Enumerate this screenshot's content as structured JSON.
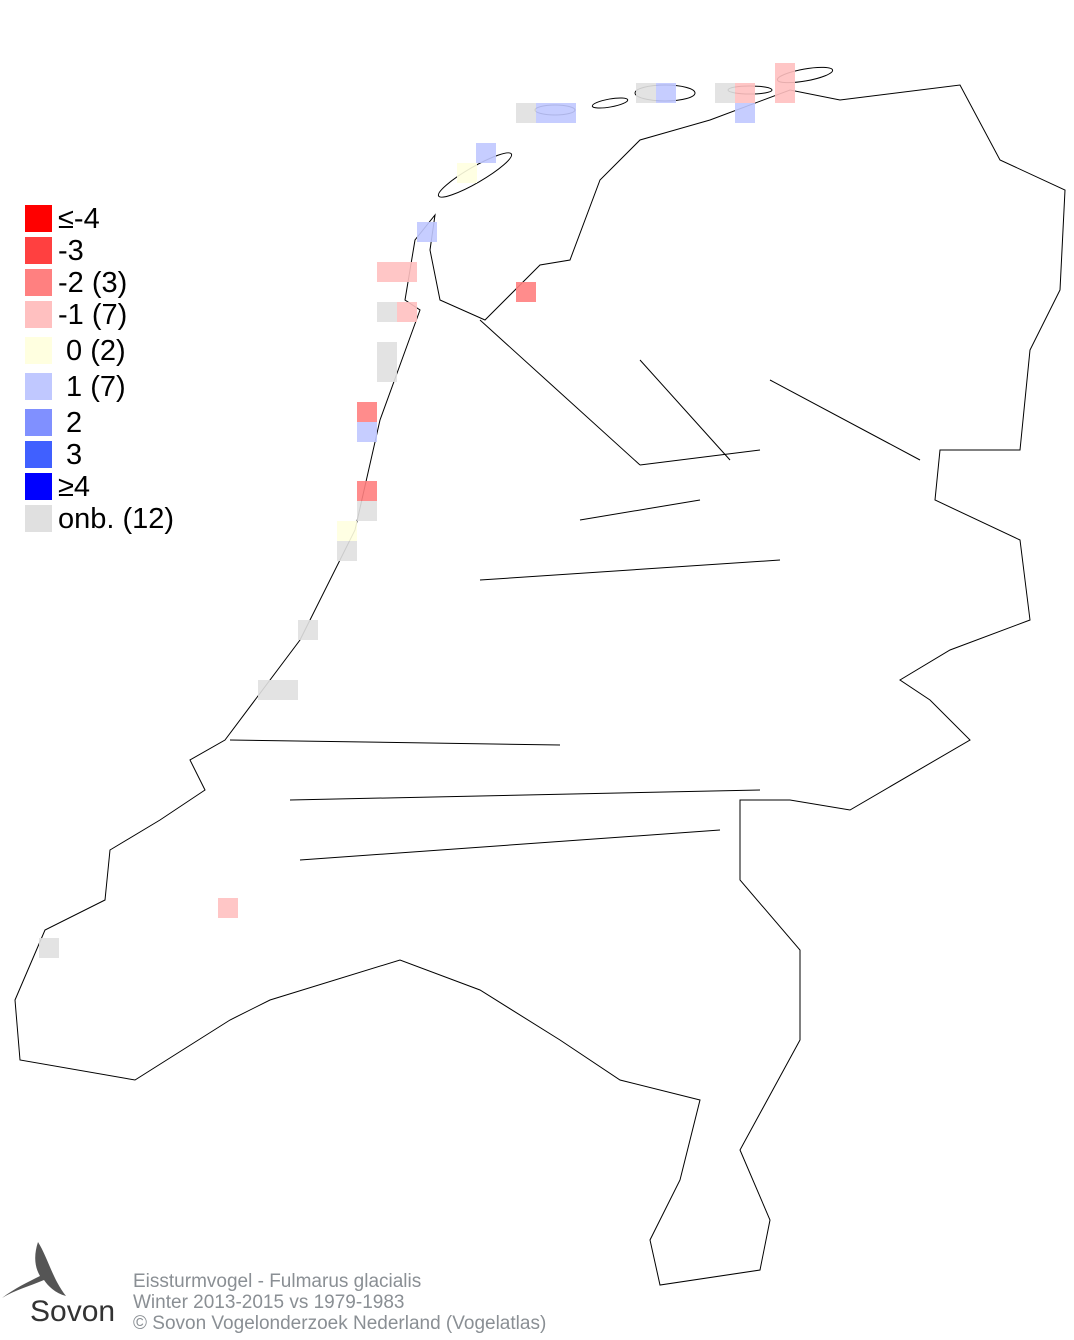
{
  "legend": [
    {
      "label": "≤-4",
      "color": "#ff0000"
    },
    {
      "label": "-3",
      "color": "#ff4040"
    },
    {
      "label": "-2 (3)",
      "color": "#ff8080"
    },
    {
      "label": "-1 (7)",
      "color": "#ffc0c0"
    },
    {
      "label": " 0 (2)",
      "color": "#ffffe0"
    },
    {
      "label": " 1 (7)",
      "color": "#c0c8ff"
    },
    {
      "label": " 2",
      "color": "#8090ff"
    },
    {
      "label": " 3",
      "color": "#4060ff"
    },
    {
      "label": "≥4",
      "color": "#0000ff"
    },
    {
      "label": "onb. (12)",
      "color": "#e0e0e0"
    }
  ],
  "footer": {
    "line1": "Eissturmvogel - Fulmarus glacialis",
    "line2": "Winter 2013-2015 vs 1979-1983",
    "line3": "© Sovon Vogelonderzoek Nederland (Vogelatlas)"
  },
  "logo": {
    "text": "Sovon",
    "icon": "swallow-icon"
  }
}
